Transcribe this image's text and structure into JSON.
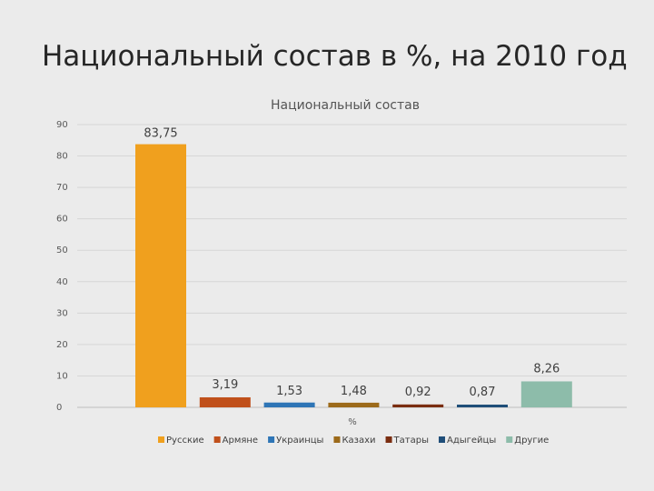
{
  "slide": {
    "title": "Национальный состав в %, на 2010 год"
  },
  "chart_data": {
    "type": "bar",
    "title": "Национальный состав",
    "xlabel": "%",
    "ylabel": "",
    "ylim": [
      0,
      90
    ],
    "yticks": [
      0,
      10,
      20,
      30,
      40,
      50,
      60,
      70,
      80,
      90
    ],
    "grid": true,
    "legend_position": "bottom",
    "series": [
      {
        "name": "Русские",
        "value": 83.75,
        "label": "83,75",
        "color": "#f0a01e"
      },
      {
        "name": "Армяне",
        "value": 3.19,
        "label": "3,19",
        "color": "#c0501b"
      },
      {
        "name": "Украинцы",
        "value": 1.53,
        "label": "1,53",
        "color": "#2e75b6"
      },
      {
        "name": "Казахи",
        "value": 1.48,
        "label": "1,48",
        "color": "#9c6a1a"
      },
      {
        "name": "Татары",
        "value": 0.92,
        "label": "0,92",
        "color": "#7a2d10"
      },
      {
        "name": "Адыгейцы",
        "value": 0.87,
        "label": "0,87",
        "color": "#1f4e79"
      },
      {
        "name": "Другие",
        "value": 8.26,
        "label": "8,26",
        "color": "#8dbcaa"
      }
    ]
  }
}
